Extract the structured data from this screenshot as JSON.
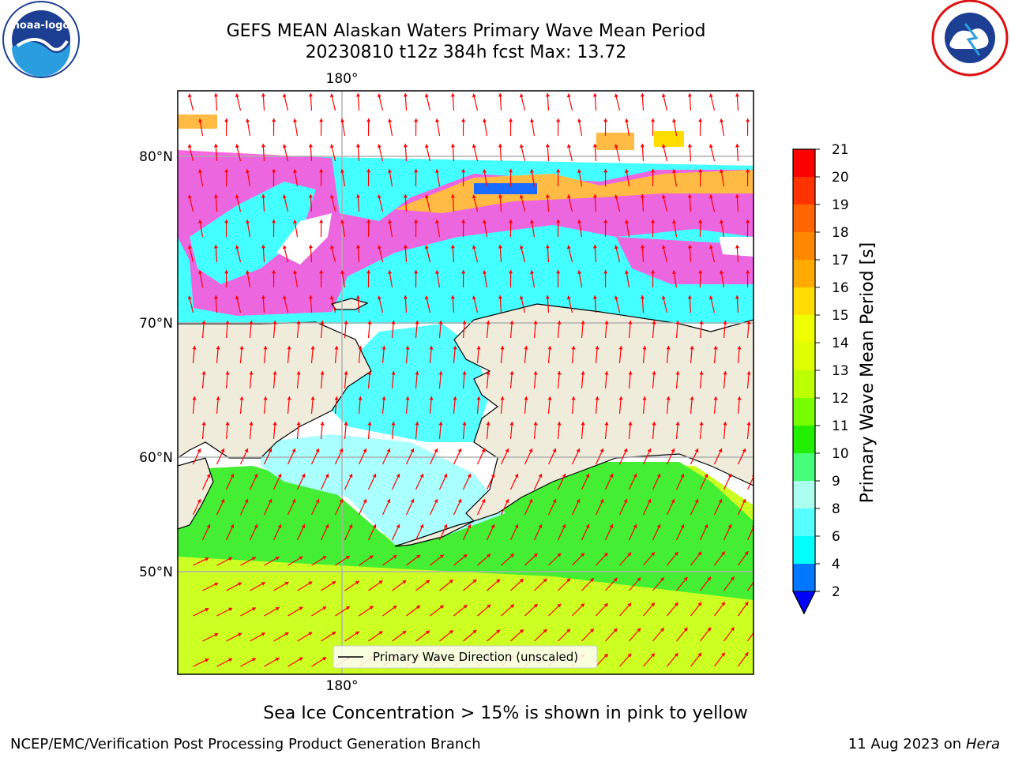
{
  "title_line1": "GEFS MEAN Alaskan Waters Primary Wave Mean Period",
  "title_line2": "20230810 t12z 384h fcst   Max: 13.72",
  "top_axis_label": "180°",
  "bottom_axis_label": "180°",
  "lat_labels": [
    "80°N",
    "70°N",
    "60°N",
    "50°N"
  ],
  "legend_text": "Primary Wave Direction (unscaled)",
  "ice_note": "Sea Ice Concentration > 15% is shown in pink to yellow",
  "footer_left": "NCEP/EMC/Verification Post Processing Product Generation Branch",
  "footer_date": "11 Aug 2023 on",
  "footer_host": "Hera",
  "logos": {
    "left": "noaa-logo",
    "right": "nws-logo"
  },
  "colorbar": {
    "label": "Primary Wave Mean Period [s]",
    "ticks": [
      "21",
      "20",
      "19",
      "18",
      "17",
      "16",
      "15",
      "14",
      "13",
      "12",
      "11",
      "10",
      "9",
      "8",
      "6",
      "4",
      "2"
    ],
    "colors": [
      "#ff0000",
      "#ff3300",
      "#ff6600",
      "#ff8800",
      "#ffaa00",
      "#ffdd00",
      "#eeff00",
      "#ddff00",
      "#bbff00",
      "#77ff00",
      "#22ee00",
      "#44ff77",
      "#aaffee",
      "#55ffff",
      "#00ffff",
      "#0077ff"
    ],
    "extend_color": "#0000ff"
  },
  "colors": {
    "land": "#efecdc",
    "arrows": "#ff0000",
    "ice_pink": "#ff55dd",
    "ice_orange": "#ffbb44",
    "water_cyan": "#44ffff",
    "water_lightcyan": "#aaffff",
    "water_green": "#44ff44",
    "water_yellowgreen": "#ccff22"
  }
}
